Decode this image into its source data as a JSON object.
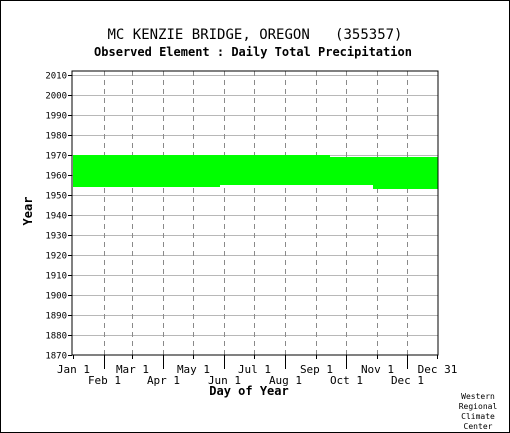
{
  "chart_data": {
    "type": "bar",
    "title": "MC KENZIE BRIDGE, OREGON   (355357)",
    "subtitle": "Observed Element : Daily Total Precipitation",
    "xlabel": "Day of Year",
    "ylabel": "Year",
    "xlim": [
      1,
      365
    ],
    "ylim": [
      1870,
      2012
    ],
    "yticks": [
      1870,
      1880,
      1890,
      1900,
      1910,
      1920,
      1930,
      1940,
      1950,
      1960,
      1970,
      1980,
      1990,
      2000,
      2010
    ],
    "xticks": [
      {
        "label": "Jan 1",
        "day": 1,
        "row": 0
      },
      {
        "label": "Feb 1",
        "day": 32,
        "row": 1
      },
      {
        "label": "Mar 1",
        "day": 60,
        "row": 0
      },
      {
        "label": "Apr 1",
        "day": 91,
        "row": 1
      },
      {
        "label": "May 1",
        "day": 121,
        "row": 0
      },
      {
        "label": "Jun 1",
        "day": 152,
        "row": 1
      },
      {
        "label": "Jul 1",
        "day": 182,
        "row": 0
      },
      {
        "label": "Aug 1",
        "day": 213,
        "row": 1
      },
      {
        "label": "Sep 1",
        "day": 244,
        "row": 0
      },
      {
        "label": "Oct 1",
        "day": 274,
        "row": 1
      },
      {
        "label": "Nov 1",
        "day": 305,
        "row": 0
      },
      {
        "label": "Dec 1",
        "day": 335,
        "row": 1
      },
      {
        "label": "Dec 31",
        "day": 365,
        "row": 0
      }
    ],
    "grid": true,
    "series": [
      {
        "color": "#00ff00",
        "segments": [
          {
            "day_start": 1,
            "day_end": 56,
            "year_start": 1954,
            "year_end": 1970
          },
          {
            "day_start": 57,
            "day_end": 147,
            "year_start": 1954,
            "year_end": 1970
          },
          {
            "day_start": 148,
            "day_end": 257,
            "year_start": 1955,
            "year_end": 1970
          },
          {
            "day_start": 258,
            "day_end": 300,
            "year_start": 1955,
            "year_end": 1969
          },
          {
            "day_start": 301,
            "day_end": 365,
            "year_start": 1953,
            "year_end": 1969
          }
        ]
      }
    ]
  },
  "credit": {
    "line1": "Western",
    "line2": "Regional",
    "line3": "Climate",
    "line4": "Center"
  }
}
